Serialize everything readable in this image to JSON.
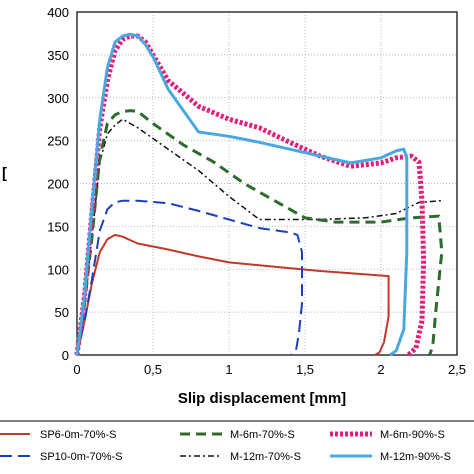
{
  "chart_data": {
    "type": "line",
    "title": "",
    "xlabel": "Slip displacement [mm]",
    "ylabel": "",
    "ylabel_fragment": "[",
    "xlim": [
      0,
      2.5
    ],
    "ylim": [
      0,
      400
    ],
    "x_ticks": [
      0,
      0.5,
      1,
      1.5,
      2,
      2.5
    ],
    "x_tick_labels": [
      "0",
      "0,5",
      "1",
      "1,5",
      "2",
      "2,5"
    ],
    "y_ticks": [
      0,
      50,
      100,
      150,
      200,
      250,
      300,
      350,
      400
    ],
    "y_tick_labels": [
      "0",
      "50",
      "100",
      "150",
      "200",
      "250",
      "300",
      "350",
      "400"
    ],
    "grid": true,
    "legend_position": "bottom",
    "series": [
      {
        "name": "SP6-0m-70%-S",
        "color": "#c0392b",
        "style": "solid",
        "x": [
          0,
          0.05,
          0.1,
          0.15,
          0.2,
          0.25,
          0.3,
          0.4,
          0.6,
          0.8,
          1.0,
          1.3,
          1.6,
          1.9,
          2.05,
          2.05,
          2.02,
          1.99,
          1.96
        ],
        "y": [
          0,
          40,
          85,
          120,
          135,
          140,
          138,
          130,
          123,
          115,
          108,
          103,
          98,
          94,
          92,
          45,
          15,
          3,
          0
        ]
      },
      {
        "name": "SP10-0m-70%-S",
        "color": "#1a3fbf",
        "style": "dashed",
        "x": [
          0,
          0.05,
          0.1,
          0.15,
          0.2,
          0.25,
          0.3,
          0.4,
          0.6,
          0.8,
          1.0,
          1.2,
          1.4,
          1.45,
          1.48,
          1.48,
          1.46,
          1.44,
          1.41
        ],
        "y": [
          0,
          40,
          90,
          145,
          170,
          178,
          180,
          180,
          177,
          168,
          158,
          148,
          143,
          140,
          120,
          60,
          25,
          5,
          0
        ]
      },
      {
        "name": "M-6m-70%-S",
        "color": "#2e6b2e",
        "style": "longdash",
        "x": [
          0,
          0.05,
          0.1,
          0.15,
          0.2,
          0.25,
          0.3,
          0.35,
          0.4,
          0.5,
          0.7,
          0.9,
          1.1,
          1.3,
          1.5,
          1.7,
          2.0,
          2.2,
          2.38,
          2.4,
          2.36,
          2.34,
          2.32
        ],
        "y": [
          0,
          60,
          140,
          230,
          270,
          280,
          284,
          285,
          284,
          270,
          245,
          225,
          200,
          180,
          160,
          155,
          155,
          160,
          162,
          120,
          50,
          10,
          0
        ]
      },
      {
        "name": "M-12m-70%-S",
        "color": "#111111",
        "style": "dashdot",
        "x": [
          0,
          0.05,
          0.1,
          0.15,
          0.2,
          0.25,
          0.3,
          0.4,
          0.6,
          0.8,
          1.0,
          1.2,
          1.4,
          1.6,
          1.9,
          2.1,
          2.25,
          2.4
        ],
        "y": [
          0,
          60,
          140,
          225,
          258,
          268,
          275,
          265,
          240,
          215,
          185,
          158,
          158,
          158,
          160,
          165,
          178,
          180
        ]
      },
      {
        "name": "M-6m-90%-S",
        "color": "#e0207a",
        "style": "dotted",
        "x": [
          0,
          0.05,
          0.1,
          0.15,
          0.2,
          0.25,
          0.3,
          0.35,
          0.4,
          0.45,
          0.5,
          0.6,
          0.8,
          1.0,
          1.2,
          1.4,
          1.6,
          1.8,
          2.0,
          2.1,
          2.2,
          2.25,
          2.27,
          2.28,
          2.27,
          2.23,
          2.18
        ],
        "y": [
          0,
          70,
          170,
          265,
          320,
          355,
          368,
          372,
          372,
          365,
          350,
          320,
          290,
          275,
          265,
          248,
          232,
          220,
          224,
          230,
          232,
          225,
          180,
          110,
          40,
          8,
          0
        ]
      },
      {
        "name": "M-12m-90%-S",
        "color": "#4aa8e0",
        "style": "solid",
        "x": [
          0,
          0.05,
          0.1,
          0.15,
          0.2,
          0.25,
          0.3,
          0.35,
          0.4,
          0.45,
          0.5,
          0.6,
          0.8,
          1.0,
          1.2,
          1.4,
          1.6,
          1.8,
          2.0,
          2.1,
          2.15,
          2.17,
          2.17,
          2.15,
          2.1,
          2.06
        ],
        "y": [
          0,
          70,
          175,
          275,
          335,
          365,
          372,
          374,
          372,
          362,
          348,
          310,
          260,
          255,
          248,
          240,
          232,
          224,
          230,
          238,
          240,
          230,
          120,
          30,
          5,
          0
        ]
      }
    ]
  }
}
